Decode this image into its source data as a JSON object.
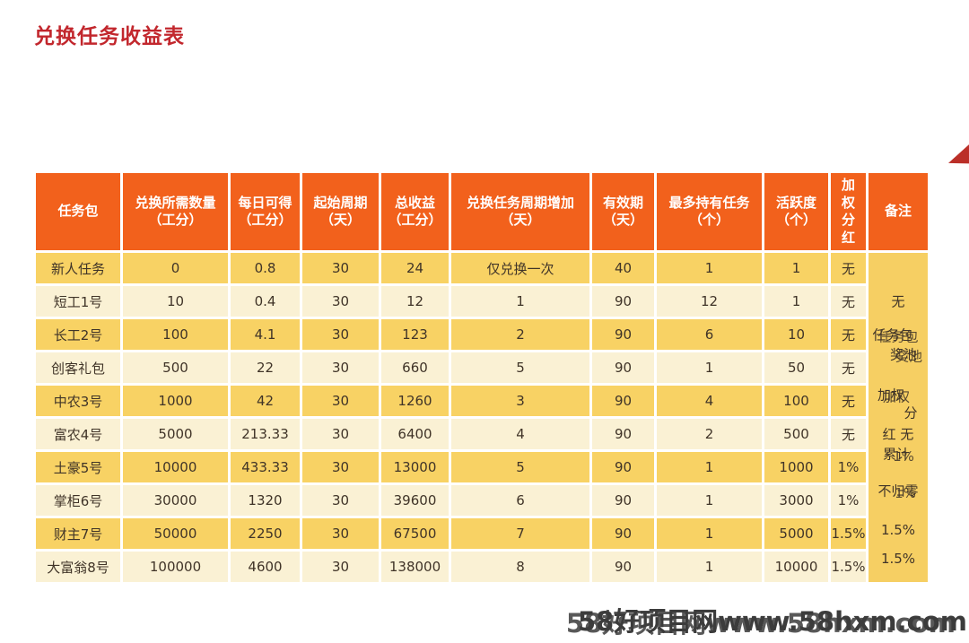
{
  "page": {
    "title": "兑换任务收益表"
  },
  "watermark": {
    "text": "58好项目网www.58hxm.com"
  },
  "colors": {
    "title_red": "#C2272D",
    "header_bg": "#F2611C",
    "row_gold": "#F8D264",
    "row_cream": "#FAF1D4",
    "remark_bg": "#F6CF63",
    "cell_text": "#403428",
    "triangle_red": "#BB2F28",
    "watermark_gray": "#3C3C3C"
  },
  "chart_data": {
    "type": "table",
    "title": "兑换任务收益表",
    "columns": [
      "任务包",
      "兑换所需数量（工分）",
      "每日可得（工分）",
      "起始周期（天）",
      "总收益（工分）",
      "兑换任务周期增加（天）",
      "有效期（天）",
      "最多持有任务（个）",
      "活跃度（个）",
      "加权分红",
      "备注"
    ],
    "rows": [
      [
        "新人任务",
        "0",
        "0.8",
        "30",
        "24",
        "仅兑换一次",
        "40",
        "1",
        "1",
        "无"
      ],
      [
        "短工1号",
        "10",
        "0.4",
        "30",
        "12",
        "1",
        "90",
        "12",
        "1",
        "无"
      ],
      [
        "长工2号",
        "100",
        "4.1",
        "30",
        "123",
        "2",
        "90",
        "6",
        "10",
        "无"
      ],
      [
        "创客礼包",
        "500",
        "22",
        "30",
        "660",
        "5",
        "90",
        "1",
        "50",
        "无"
      ],
      [
        "中农3号",
        "1000",
        "42",
        "30",
        "1260",
        "3",
        "90",
        "4",
        "100",
        "无"
      ],
      [
        "富农4号",
        "5000",
        "213.33",
        "30",
        "6400",
        "4",
        "90",
        "2",
        "500",
        "无"
      ],
      [
        "土豪5号",
        "10000",
        "433.33",
        "30",
        "13000",
        "5",
        "90",
        "1",
        "1000",
        "1%"
      ],
      [
        "掌柜6号",
        "30000",
        "1320",
        "30",
        "39600",
        "6",
        "90",
        "1",
        "3000",
        "1%"
      ],
      [
        "财主7号",
        "50000",
        "2250",
        "30",
        "67500",
        "7",
        "90",
        "1",
        "5000",
        "1.5%"
      ],
      [
        "大富翁8号",
        "100000",
        "4600",
        "30",
        "138000",
        "8",
        "90",
        "1",
        "10000",
        "1.5%"
      ]
    ],
    "remark_column": {
      "header": "备注",
      "note": "任务包奖池 加权分红 无 累计 不归零",
      "lines": [
        {
          "row": 2,
          "text": "无"
        },
        {
          "row": 3,
          "text": "任务包",
          "ghost": true
        },
        {
          "row": 3.6,
          "text": "奖池",
          "ghost": true
        },
        {
          "row": 4.8,
          "text": "加权",
          "ghost": true
        },
        {
          "row": 5.35,
          "text": "分"
        },
        {
          "row": 6,
          "text": "红 无"
        },
        {
          "row": 6.6,
          "text": "累计",
          "overlap": "1%"
        },
        {
          "row": 7.7,
          "text": "不归零",
          "overlap": "1%"
        },
        {
          "row": 8.9,
          "text": "1.5%"
        },
        {
          "row": 9.75,
          "text": "1.5%"
        }
      ]
    }
  }
}
